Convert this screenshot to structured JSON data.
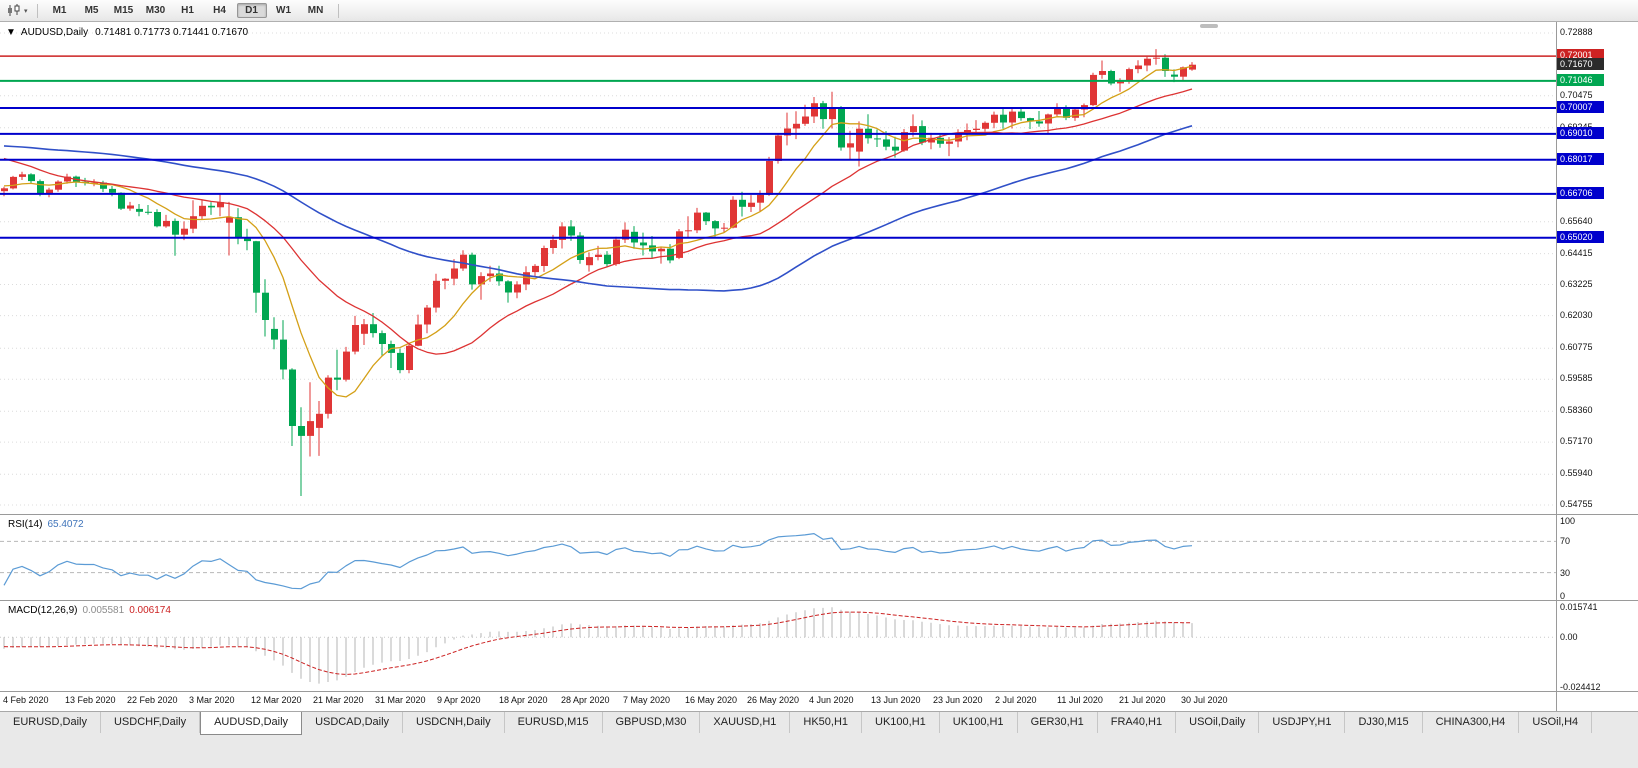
{
  "toolbar": {
    "timeframes": [
      "M1",
      "M5",
      "M15",
      "M30",
      "H1",
      "H4",
      "D1",
      "W1",
      "MN"
    ],
    "active_timeframe": "D1"
  },
  "chart_header": {
    "collapse_icon": "▼",
    "symbol_period": "AUDUSD,Daily",
    "ohlc": "0.71481 0.71773 0.71441 0.71670"
  },
  "rsi_panel": {
    "name": "RSI(14)",
    "value": "65.4072",
    "axis_labels": [
      "100",
      "70",
      "30",
      "0"
    ]
  },
  "macd_panel": {
    "name": "MACD(12,26,9)",
    "main_value": "0.005581",
    "signal_value": "0.006174",
    "axis_top": "0.015741",
    "axis_zero": "0.00",
    "axis_bottom": "-0.024412"
  },
  "date_axis": [
    "4 Feb 2020",
    "13 Feb 2020",
    "22 Feb 2020",
    "3 Mar 2020",
    "12 Mar 2020",
    "21 Mar 2020",
    "31 Mar 2020",
    "9 Apr 2020",
    "18 Apr 2020",
    "28 Apr 2020",
    "7 May 2020",
    "16 May 2020",
    "26 May 2020",
    "4 Jun 2020",
    "13 Jun 2020",
    "23 Jun 2020",
    "2 Jul 2020",
    "11 Jul 2020",
    "21 Jul 2020",
    "30 Jul 2020"
  ],
  "tabs": {
    "items": [
      "EURUSD,Daily",
      "USDCHF,Daily",
      "AUDUSD,Daily",
      "USDCAD,Daily",
      "USDCNH,Daily",
      "EURUSD,M15",
      "GBPUSD,M30",
      "XAUUSD,H1",
      "HK50,H1",
      "UK100,H1",
      "UK100,H1",
      "GER30,H1",
      "FRA40,H1",
      "USOil,Daily",
      "USDJPY,H1",
      "DJ30,M15",
      "CHINA300,H4",
      "USOil,H4"
    ],
    "active": "AUDUSD,Daily"
  },
  "chart_data": {
    "type": "candlestick",
    "symbol": "AUDUSD",
    "timeframe": "Daily",
    "current_ohlc": {
      "open": "0.71481",
      "high": "0.71773",
      "low": "0.71441",
      "close": "0.71670"
    },
    "colors": {
      "up": "#e03636",
      "down": "#00a651"
    },
    "price_axis": {
      "min": 0.54755,
      "max": 0.72888,
      "ticks": [
        "0.72888",
        "0.70475",
        "0.69245",
        "0.65640",
        "0.64415",
        "0.63225",
        "0.62030",
        "0.60775",
        "0.59585",
        "0.58360",
        "0.57170",
        "0.55940",
        "0.54755"
      ]
    },
    "levels": [
      {
        "price": "0.72001",
        "color": "#cc2222",
        "width": 1.5
      },
      {
        "price": "0.71670",
        "color": "#2b2b2b",
        "line": false,
        "current": true
      },
      {
        "price": "0.71046",
        "color": "#00a651",
        "width": 2
      },
      {
        "price": "0.70007",
        "color": "#0000cc",
        "width": 2
      },
      {
        "price": "0.69010",
        "color": "#0000cc",
        "width": 2
      },
      {
        "price": "0.68017",
        "color": "#0000cc",
        "width": 2
      },
      {
        "price": "0.66706",
        "color": "#0000cc",
        "width": 2
      },
      {
        "price": "0.65020",
        "color": "#0000cc",
        "width": 2
      }
    ],
    "moving_averages": [
      {
        "period": 8,
        "color": "#d4a017",
        "width": 1.3
      },
      {
        "period": 21,
        "color": "#dd3333",
        "width": 1.3
      },
      {
        "period": 55,
        "color": "#3050c8",
        "width": 1.6
      }
    ],
    "rsi": {
      "period": 14,
      "levels": [
        70,
        30
      ],
      "color": "#5b9bd5",
      "current": 65.4072
    },
    "macd": {
      "fast": 12,
      "slow": 26,
      "signal": 9,
      "hist_color": "#b4b4b4",
      "signal_color": "#cc2222",
      "scale_top": 0.0158,
      "scale_bottom": -0.0244,
      "current_main": 0.005581,
      "current_signal": 0.006174
    },
    "prehistory_closes": [
      0.684,
      0.684,
      0.684,
      0.684,
      0.684,
      0.686,
      0.686,
      0.686,
      0.686,
      0.686,
      0.686,
      0.686,
      0.686,
      0.686,
      0.686,
      0.686,
      0.686,
      0.686,
      0.686,
      0.686,
      0.686,
      0.686,
      0.686,
      0.686,
      0.686,
      0.69,
      0.69,
      0.69,
      0.69,
      0.69,
      0.69,
      0.69,
      0.69,
      0.69,
      0.69,
      0.695,
      0.695,
      0.695,
      0.695,
      0.695,
      0.695,
      0.695,
      0.695,
      0.695,
      0.695,
      0.692,
      0.689,
      0.686,
      0.683,
      0.68,
      0.678,
      0.676,
      0.674,
      0.672,
      0.67,
      0.6705,
      0.671,
      0.67,
      0.6695,
      0.669
    ],
    "candles": [
      [
        0.6681,
        0.6698,
        0.6662,
        0.6692
      ],
      [
        0.6692,
        0.674,
        0.6688,
        0.6736
      ],
      [
        0.6736,
        0.6756,
        0.6724,
        0.6746
      ],
      [
        0.6746,
        0.675,
        0.6711,
        0.672
      ],
      [
        0.672,
        0.6726,
        0.6662,
        0.6671
      ],
      [
        0.6671,
        0.6694,
        0.6658,
        0.6687
      ],
      [
        0.6687,
        0.6723,
        0.6679,
        0.6718
      ],
      [
        0.6718,
        0.6748,
        0.671,
        0.6737
      ],
      [
        0.6737,
        0.6741,
        0.6697,
        0.6717
      ],
      [
        0.6717,
        0.6732,
        0.6703,
        0.6714
      ],
      [
        0.6714,
        0.6727,
        0.67,
        0.6714
      ],
      [
        0.6714,
        0.6721,
        0.6678,
        0.669
      ],
      [
        0.669,
        0.6701,
        0.6662,
        0.6675
      ],
      [
        0.6675,
        0.6677,
        0.6609,
        0.6614
      ],
      [
        0.6614,
        0.664,
        0.6606,
        0.6626
      ],
      [
        0.6613,
        0.6632,
        0.6585,
        0.6602
      ],
      [
        0.6602,
        0.6628,
        0.6591,
        0.6601
      ],
      [
        0.6601,
        0.6612,
        0.6542,
        0.6546
      ],
      [
        0.6546,
        0.659,
        0.6541,
        0.6567
      ],
      [
        0.6567,
        0.6576,
        0.6433,
        0.6514
      ],
      [
        0.6514,
        0.6565,
        0.6493,
        0.6537
      ],
      [
        0.6537,
        0.6646,
        0.652,
        0.6585
      ],
      [
        0.6585,
        0.6646,
        0.6571,
        0.6625
      ],
      [
        0.6625,
        0.6639,
        0.659,
        0.6619
      ],
      [
        0.6619,
        0.6668,
        0.6585,
        0.6639
      ],
      [
        0.656,
        0.664,
        0.6434,
        0.6581
      ],
      [
        0.6581,
        0.6616,
        0.6477,
        0.6503
      ],
      [
        0.6503,
        0.6537,
        0.6454,
        0.6489
      ],
      [
        0.6489,
        0.649,
        0.6214,
        0.6291
      ],
      [
        0.6291,
        0.6343,
        0.6123,
        0.6186
      ],
      [
        0.6152,
        0.6197,
        0.6074,
        0.6111
      ],
      [
        0.6111,
        0.6186,
        0.5958,
        0.5996
      ],
      [
        0.5996,
        0.6001,
        0.5702,
        0.5779
      ],
      [
        0.5779,
        0.5851,
        0.551,
        0.5741
      ],
      [
        0.5741,
        0.5947,
        0.5662,
        0.5798
      ],
      [
        0.5772,
        0.5875,
        0.5664,
        0.5826
      ],
      [
        0.5826,
        0.5974,
        0.5808,
        0.5965
      ],
      [
        0.5965,
        0.6072,
        0.5916,
        0.5957
      ],
      [
        0.5957,
        0.6083,
        0.595,
        0.6065
      ],
      [
        0.6065,
        0.6202,
        0.6054,
        0.6167
      ],
      [
        0.6133,
        0.619,
        0.609,
        0.617
      ],
      [
        0.617,
        0.6213,
        0.6119,
        0.6136
      ],
      [
        0.6136,
        0.6146,
        0.6049,
        0.6094
      ],
      [
        0.6094,
        0.6107,
        0.6002,
        0.606
      ],
      [
        0.606,
        0.6076,
        0.5982,
        0.5994
      ],
      [
        0.5994,
        0.6097,
        0.5982,
        0.6087
      ],
      [
        0.6087,
        0.6207,
        0.6085,
        0.6169
      ],
      [
        0.6169,
        0.6244,
        0.6135,
        0.6234
      ],
      [
        0.6234,
        0.6364,
        0.6215,
        0.6337
      ],
      [
        0.6337,
        0.6347,
        0.6304,
        0.6345
      ],
      [
        0.6345,
        0.642,
        0.632,
        0.6384
      ],
      [
        0.6384,
        0.6454,
        0.6375,
        0.6437
      ],
      [
        0.6437,
        0.6445,
        0.6303,
        0.6323
      ],
      [
        0.6323,
        0.637,
        0.6264,
        0.6355
      ],
      [
        0.6355,
        0.6395,
        0.6333,
        0.6365
      ],
      [
        0.6365,
        0.6395,
        0.6318,
        0.6335
      ],
      [
        0.6335,
        0.6339,
        0.6253,
        0.6292
      ],
      [
        0.6292,
        0.6335,
        0.627,
        0.6323
      ],
      [
        0.6323,
        0.6393,
        0.6301,
        0.637
      ],
      [
        0.637,
        0.6401,
        0.6354,
        0.6394
      ],
      [
        0.6394,
        0.6472,
        0.6371,
        0.6463
      ],
      [
        0.6463,
        0.6513,
        0.6441,
        0.6494
      ],
      [
        0.6494,
        0.6562,
        0.6461,
        0.6546
      ],
      [
        0.6546,
        0.657,
        0.649,
        0.6511
      ],
      [
        0.6511,
        0.6524,
        0.6402,
        0.6417
      ],
      [
        0.6397,
        0.6446,
        0.6372,
        0.6428
      ],
      [
        0.6428,
        0.6471,
        0.6415,
        0.6437
      ],
      [
        0.6437,
        0.6451,
        0.6389,
        0.6401
      ],
      [
        0.6401,
        0.6506,
        0.6394,
        0.6495
      ],
      [
        0.6495,
        0.6561,
        0.6482,
        0.6533
      ],
      [
        0.6525,
        0.6547,
        0.646,
        0.6484
      ],
      [
        0.6484,
        0.6522,
        0.6434,
        0.6473
      ],
      [
        0.6473,
        0.6509,
        0.6422,
        0.645
      ],
      [
        0.645,
        0.6468,
        0.6403,
        0.646
      ],
      [
        0.646,
        0.6478,
        0.6404,
        0.6415
      ],
      [
        0.6425,
        0.6536,
        0.642,
        0.6527
      ],
      [
        0.6527,
        0.6585,
        0.6505,
        0.6531
      ],
      [
        0.6531,
        0.6617,
        0.652,
        0.6599
      ],
      [
        0.6599,
        0.6601,
        0.6551,
        0.6566
      ],
      [
        0.6566,
        0.657,
        0.6506,
        0.6538
      ],
      [
        0.6538,
        0.6559,
        0.6522,
        0.6541
      ],
      [
        0.6541,
        0.6662,
        0.6538,
        0.6648
      ],
      [
        0.6648,
        0.6679,
        0.6584,
        0.6621
      ],
      [
        0.6621,
        0.6666,
        0.6601,
        0.6637
      ],
      [
        0.6637,
        0.6684,
        0.6601,
        0.6667
      ],
      [
        0.6667,
        0.6813,
        0.6663,
        0.6797
      ],
      [
        0.6797,
        0.6899,
        0.6787,
        0.6895
      ],
      [
        0.6895,
        0.6983,
        0.6857,
        0.6922
      ],
      [
        0.6922,
        0.6988,
        0.6881,
        0.694
      ],
      [
        0.694,
        0.7013,
        0.6932,
        0.6968
      ],
      [
        0.6968,
        0.7043,
        0.6943,
        0.7019
      ],
      [
        0.7019,
        0.7028,
        0.6921,
        0.6958
      ],
      [
        0.6958,
        0.7063,
        0.6922,
        0.7
      ],
      [
        0.7,
        0.7008,
        0.6837,
        0.6849
      ],
      [
        0.6849,
        0.6913,
        0.6799,
        0.6865
      ],
      [
        0.6833,
        0.6949,
        0.6776,
        0.6921
      ],
      [
        0.6921,
        0.6977,
        0.6864,
        0.6884
      ],
      [
        0.6884,
        0.6918,
        0.6851,
        0.688
      ],
      [
        0.688,
        0.6912,
        0.6838,
        0.6852
      ],
      [
        0.6852,
        0.689,
        0.681,
        0.6837
      ],
      [
        0.6837,
        0.692,
        0.6832,
        0.6908
      ],
      [
        0.6908,
        0.6976,
        0.689,
        0.6931
      ],
      [
        0.6931,
        0.6953,
        0.6858,
        0.6868
      ],
      [
        0.6868,
        0.6905,
        0.6842,
        0.6886
      ],
      [
        0.6886,
        0.6898,
        0.6848,
        0.6863
      ],
      [
        0.6863,
        0.6889,
        0.6816,
        0.6872
      ],
      [
        0.6872,
        0.6919,
        0.685,
        0.6903
      ],
      [
        0.6903,
        0.6941,
        0.6877,
        0.6916
      ],
      [
        0.6916,
        0.6954,
        0.6904,
        0.6921
      ],
      [
        0.6921,
        0.6949,
        0.691,
        0.6944
      ],
      [
        0.6944,
        0.6987,
        0.6923,
        0.6975
      ],
      [
        0.6975,
        0.6998,
        0.6921,
        0.6945
      ],
      [
        0.6945,
        0.6999,
        0.6922,
        0.6987
      ],
      [
        0.6987,
        0.7001,
        0.6952,
        0.6962
      ],
      [
        0.6962,
        0.6963,
        0.692,
        0.6949
      ],
      [
        0.6949,
        0.6989,
        0.6929,
        0.6941
      ],
      [
        0.6941,
        0.6979,
        0.6899,
        0.6976
      ],
      [
        0.6976,
        0.7019,
        0.6967,
        0.7004
      ],
      [
        0.7004,
        0.7011,
        0.6954,
        0.6963
      ],
      [
        0.6963,
        0.7002,
        0.6951,
        0.6995
      ],
      [
        0.6995,
        0.7018,
        0.6965,
        0.7012
      ],
      [
        0.7012,
        0.7136,
        0.7008,
        0.7128
      ],
      [
        0.7128,
        0.7183,
        0.7113,
        0.7143
      ],
      [
        0.7143,
        0.7148,
        0.7088,
        0.7095
      ],
      [
        0.7095,
        0.7115,
        0.7063,
        0.7102
      ],
      [
        0.7102,
        0.7156,
        0.7094,
        0.715
      ],
      [
        0.715,
        0.7184,
        0.7134,
        0.7164
      ],
      [
        0.7164,
        0.7197,
        0.7142,
        0.719
      ],
      [
        0.719,
        0.7227,
        0.7167,
        0.7194
      ],
      [
        0.7194,
        0.7207,
        0.712,
        0.7143
      ],
      [
        0.7129,
        0.7149,
        0.71,
        0.7121
      ],
      [
        0.7121,
        0.716,
        0.7107,
        0.7157
      ],
      [
        0.7148,
        0.7177,
        0.7144,
        0.7167
      ]
    ]
  }
}
